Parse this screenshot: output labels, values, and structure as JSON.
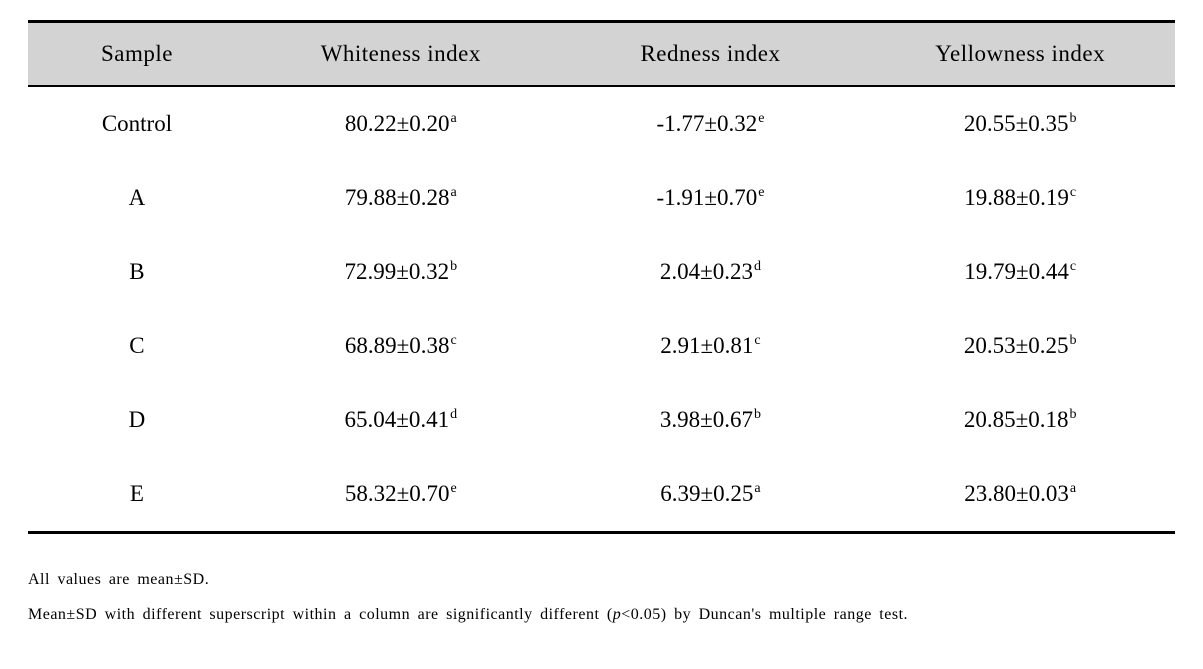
{
  "table": {
    "columns": [
      "Sample",
      "Whiteness index",
      "Redness index",
      "Yellowness index"
    ],
    "col_widths_pct": [
      19,
      27,
      27,
      27
    ],
    "header_bg": "#d3d3d3",
    "border_color": "#000000",
    "rows": [
      {
        "sample": "Control",
        "whiteness": {
          "value": "80.22±0.20",
          "sup": "a"
        },
        "redness": {
          "value": "-1.77±0.32",
          "sup": "e"
        },
        "yellowness": {
          "value": "20.55±0.35",
          "sup": "b"
        }
      },
      {
        "sample": "A",
        "whiteness": {
          "value": "79.88±0.28",
          "sup": "a"
        },
        "redness": {
          "value": "-1.91±0.70",
          "sup": "e"
        },
        "yellowness": {
          "value": "19.88±0.19",
          "sup": "c"
        }
      },
      {
        "sample": "B",
        "whiteness": {
          "value": "72.99±0.32",
          "sup": "b"
        },
        "redness": {
          "value": "2.04±0.23",
          "sup": "d"
        },
        "yellowness": {
          "value": "19.79±0.44",
          "sup": "c"
        }
      },
      {
        "sample": "C",
        "whiteness": {
          "value": "68.89±0.38",
          "sup": "c"
        },
        "redness": {
          "value": "2.91±0.81",
          "sup": "c"
        },
        "yellowness": {
          "value": "20.53±0.25",
          "sup": "b"
        }
      },
      {
        "sample": "D",
        "whiteness": {
          "value": "65.04±0.41",
          "sup": "d"
        },
        "redness": {
          "value": "3.98±0.67",
          "sup": "b"
        },
        "yellowness": {
          "value": "20.85±0.18",
          "sup": "b"
        }
      },
      {
        "sample": "E",
        "whiteness": {
          "value": "58.32±0.70",
          "sup": "e"
        },
        "redness": {
          "value": "6.39±0.25",
          "sup": "a"
        },
        "yellowness": {
          "value": "23.80±0.03",
          "sup": "a"
        }
      }
    ]
  },
  "footnotes": {
    "line1": "All values are mean±SD.",
    "line2_pre": "Mean±SD with different superscript within a column are significantly different (",
    "line2_ital": "p",
    "line2_post": "<0.05) by Duncan's multiple range test."
  }
}
